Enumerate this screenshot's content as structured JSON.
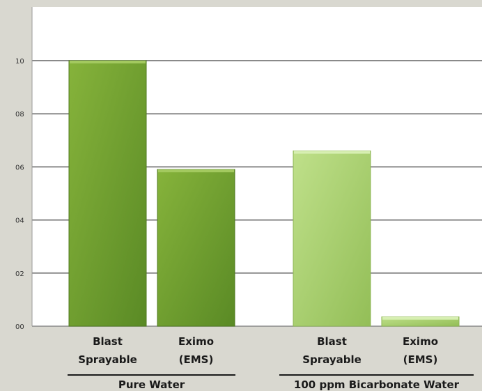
{
  "chart_data": {
    "type": "bar",
    "title": "",
    "xlabel": "",
    "ylabel": "",
    "ylim": [
      0,
      1.2
    ],
    "yticks": [
      {
        "value": 0.0,
        "label": "00"
      },
      {
        "value": 0.2,
        "label": "02"
      },
      {
        "value": 0.4,
        "label": "04"
      },
      {
        "value": 0.6,
        "label": "06"
      },
      {
        "value": 0.8,
        "label": "08"
      },
      {
        "value": 1.0,
        "label": "10"
      }
    ],
    "grid": true,
    "categories": [
      {
        "line1": "Blast",
        "line2": "Sprayable",
        "group": "Pure Water",
        "value": 1.0,
        "color": "#6f9e2e"
      },
      {
        "line1": "Eximo",
        "line2": "(EMS)",
        "group": "Pure Water",
        "value": 0.59,
        "color": "#6f9e2e"
      },
      {
        "line1": "Blast",
        "line2": "Sprayable",
        "group": "100 ppm Bicarbonate Water",
        "value": 0.66,
        "color": "#a9cf72"
      },
      {
        "line1": "Eximo",
        "line2": "(EMS)",
        "group": "100 ppm Bicarbonate Water",
        "value": 0.035,
        "color": "#a9cf72"
      }
    ],
    "groups": [
      "Pure Water",
      "100 ppm Bicarbonate Water"
    ]
  }
}
